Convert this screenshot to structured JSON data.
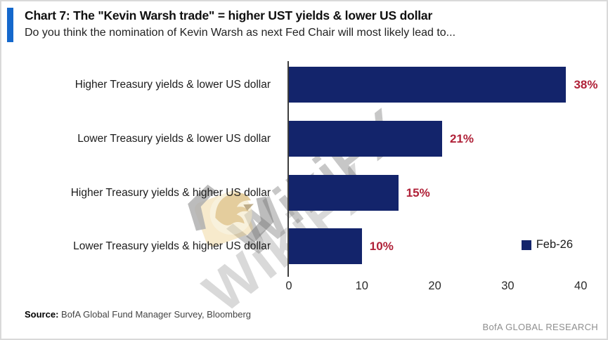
{
  "header": {
    "title": "Chart 7: The \"Kevin Warsh trade\" = higher UST yields & lower US dollar",
    "subtitle": "Do you think the nomination of Kevin Warsh as next Fed Chair will most likely lead to...",
    "accent_color": "#1568cc"
  },
  "chart_data": {
    "type": "bar",
    "orientation": "horizontal",
    "title": "Chart 7: The \"Kevin Warsh trade\" = higher UST yields & lower US dollar",
    "subtitle": "Do you think the nomination of Kevin Warsh as next Fed Chair will most likely lead to...",
    "categories": [
      "Higher Treasury yields & lower US dollar",
      "Lower Treasury yields & lower US dollar",
      "Higher Treasury yields & higher US dollar",
      "Lower Treasury yields & higher US dollar"
    ],
    "series": [
      {
        "name": "Feb-26",
        "values": [
          38,
          21,
          15,
          10
        ]
      }
    ],
    "values": [
      38,
      21,
      15,
      10
    ],
    "value_labels": [
      "38%",
      "21%",
      "15%",
      "10%"
    ],
    "xlim": [
      0,
      42
    ],
    "x_ticks": [
      0,
      10,
      20,
      30,
      40
    ],
    "x_tick_labels": [
      "0",
      "10",
      "20",
      "30",
      "40"
    ],
    "xlabel": "",
    "ylabel": "",
    "grid": false,
    "legend_position": "bottom-right",
    "bar_color": "#13246b",
    "value_label_color": "#b02138"
  },
  "legend": {
    "label": "Feb-26",
    "swatch_color": "#13246b"
  },
  "footer": {
    "source_label": "Source:",
    "source_text": " BofA Global Fund Manager Survey, Bloomberg",
    "branding": "BofA GLOBAL RESEARCH"
  },
  "watermark": {
    "text": "WikiFX",
    "icon": "wikifx-eagle-logo",
    "gold_color": "#e3c27c"
  }
}
